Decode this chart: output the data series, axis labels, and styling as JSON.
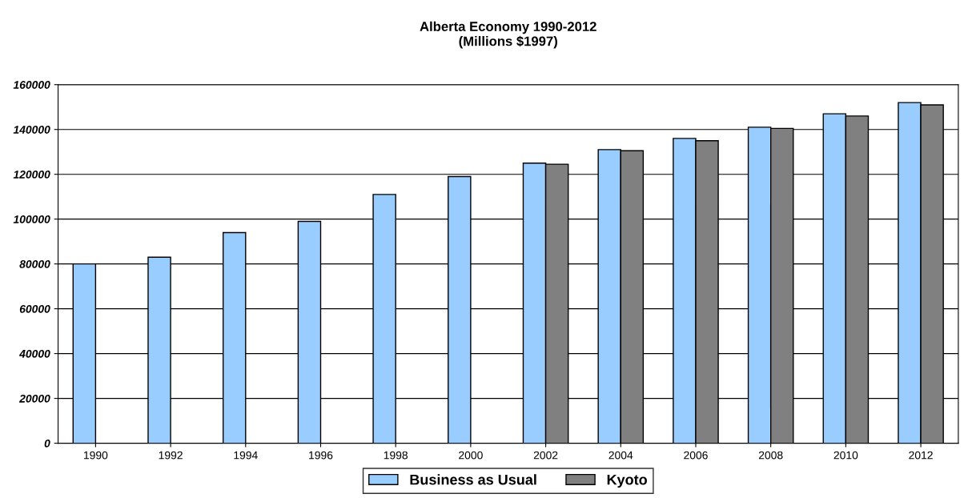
{
  "chart_data": {
    "type": "bar",
    "title": "Alberta Economy 1990-2012\n(Millions $1997)",
    "categories": [
      "1990",
      "1992",
      "1994",
      "1996",
      "1998",
      "2000",
      "2002",
      "2004",
      "2006",
      "2008",
      "2010",
      "2012"
    ],
    "series": [
      {
        "name": "Business as Usual",
        "color": "#99ccff",
        "values": [
          80000,
          83000,
          94000,
          99000,
          111000,
          119000,
          125000,
          131000,
          136000,
          141000,
          147000,
          152000
        ]
      },
      {
        "name": "Kyoto",
        "color": "#808080",
        "values": [
          null,
          null,
          null,
          null,
          null,
          null,
          124500,
          130500,
          135000,
          140500,
          146000,
          151000
        ]
      }
    ],
    "ylim": [
      0,
      160000
    ],
    "yticks": [
      0,
      20000,
      40000,
      60000,
      80000,
      100000,
      120000,
      140000,
      160000
    ],
    "grid": "y",
    "legend": "bottom"
  }
}
